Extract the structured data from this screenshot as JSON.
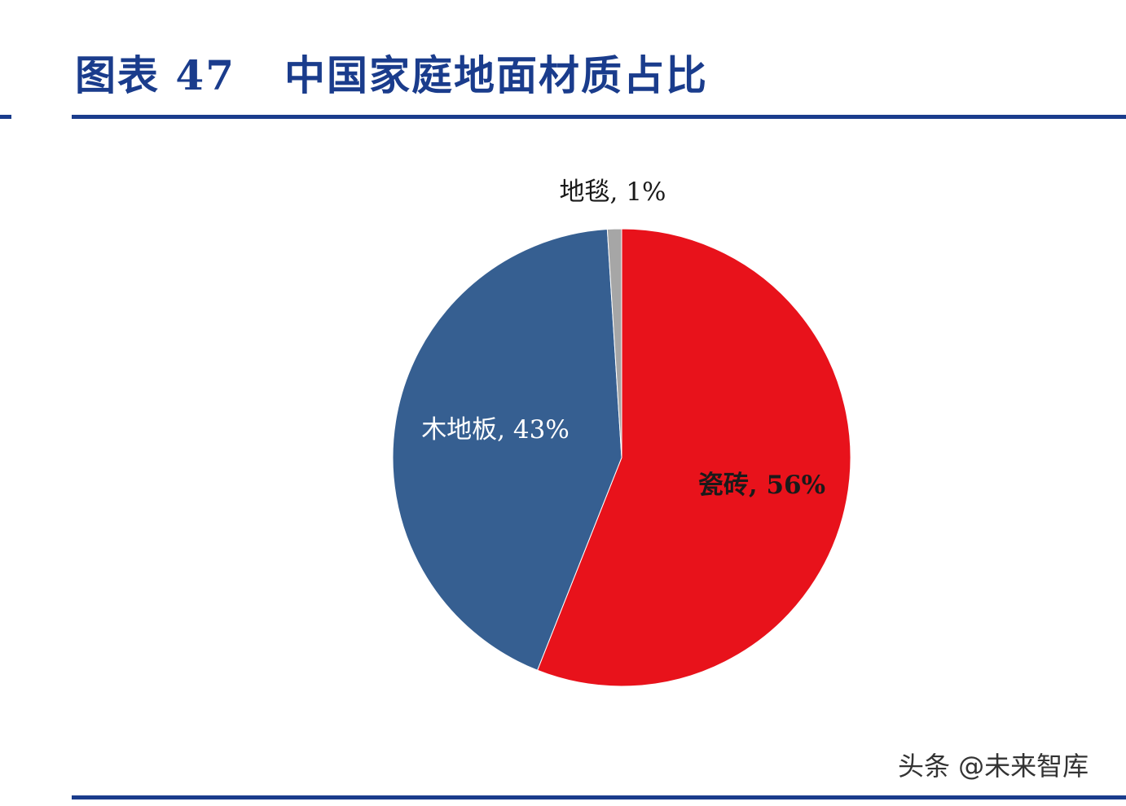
{
  "figure": {
    "number_label": "图表 47",
    "title": "中国家庭地面材质占比"
  },
  "chart_data": {
    "type": "pie",
    "title": "中国家庭地面材质占比",
    "start_angle_deg": 0,
    "direction": "clockwise",
    "slices": [
      {
        "label": "瓷砖",
        "value": 56,
        "display": "瓷砖, 56%",
        "color": "#e8121b",
        "label_color": "#1a1a1a",
        "label_position": "inside"
      },
      {
        "label": "木地板",
        "value": 43,
        "display": "木地板, 43%",
        "color": "#365f91",
        "label_color": "#ffffff",
        "label_position": "inside"
      },
      {
        "label": "地毯",
        "value": 1,
        "display": "地毯, 1%",
        "color": "#a6a6a6",
        "label_color": "#1a1a1a",
        "label_position": "outside"
      }
    ],
    "unit": "%",
    "legend": "none"
  },
  "watermark": {
    "text": "头条 @未来智库"
  },
  "colors": {
    "brand_blue": "#1a3c8c"
  }
}
